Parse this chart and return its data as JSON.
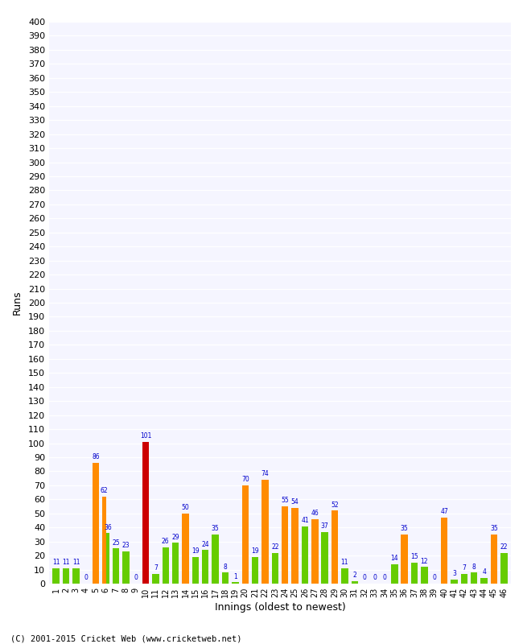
{
  "xlabel": "Innings (oldest to newest)",
  "ylabel": "Runs",
  "ylim": [
    0,
    400
  ],
  "background_color": "#ffffff",
  "plot_bg": "#f5f5ff",
  "grid_color": "#ffffff",
  "innings_labels": [
    "1",
    "2",
    "3",
    "4",
    "5",
    "6",
    "7",
    "8",
    "9",
    "10",
    "11",
    "12",
    "13",
    "14",
    "15",
    "16",
    "17",
    "18",
    "19",
    "20",
    "21",
    "22",
    "23",
    "24",
    "25",
    "26",
    "27",
    "28",
    "29",
    "30",
    "31",
    "32",
    "33",
    "34",
    "35",
    "36",
    "37",
    "38",
    "39",
    "40",
    "41",
    "42",
    "43",
    "44",
    "45",
    "46"
  ],
  "orange_values": [
    0,
    0,
    0,
    0,
    86,
    62,
    0,
    0,
    0,
    101,
    0,
    0,
    0,
    50,
    0,
    0,
    0,
    0,
    0,
    70,
    0,
    74,
    0,
    55,
    54,
    0,
    46,
    0,
    52,
    0,
    0,
    0,
    0,
    0,
    0,
    35,
    0,
    0,
    0,
    47,
    0,
    0,
    0,
    0,
    35,
    0
  ],
  "green_values": [
    11,
    11,
    11,
    0,
    0,
    36,
    25,
    23,
    0,
    0,
    7,
    26,
    29,
    0,
    19,
    24,
    35,
    8,
    1,
    0,
    19,
    0,
    22,
    0,
    0,
    41,
    0,
    37,
    0,
    11,
    2,
    0,
    0,
    0,
    14,
    0,
    15,
    12,
    0,
    0,
    3,
    7,
    8,
    4,
    0,
    22
  ],
  "century_indices": [
    9
  ],
  "orange_color": "#ff8c00",
  "green_color": "#66cc00",
  "century_color": "#cc0000",
  "anno_color": "#0000cc",
  "anno_fontsize": 5.5,
  "tick_fontsize": 7,
  "ytick_fontsize": 8,
  "axis_fontsize": 9,
  "footer": "(C) 2001-2015 Cricket Web (www.cricketweb.net)",
  "footer_fontsize": 7.5
}
